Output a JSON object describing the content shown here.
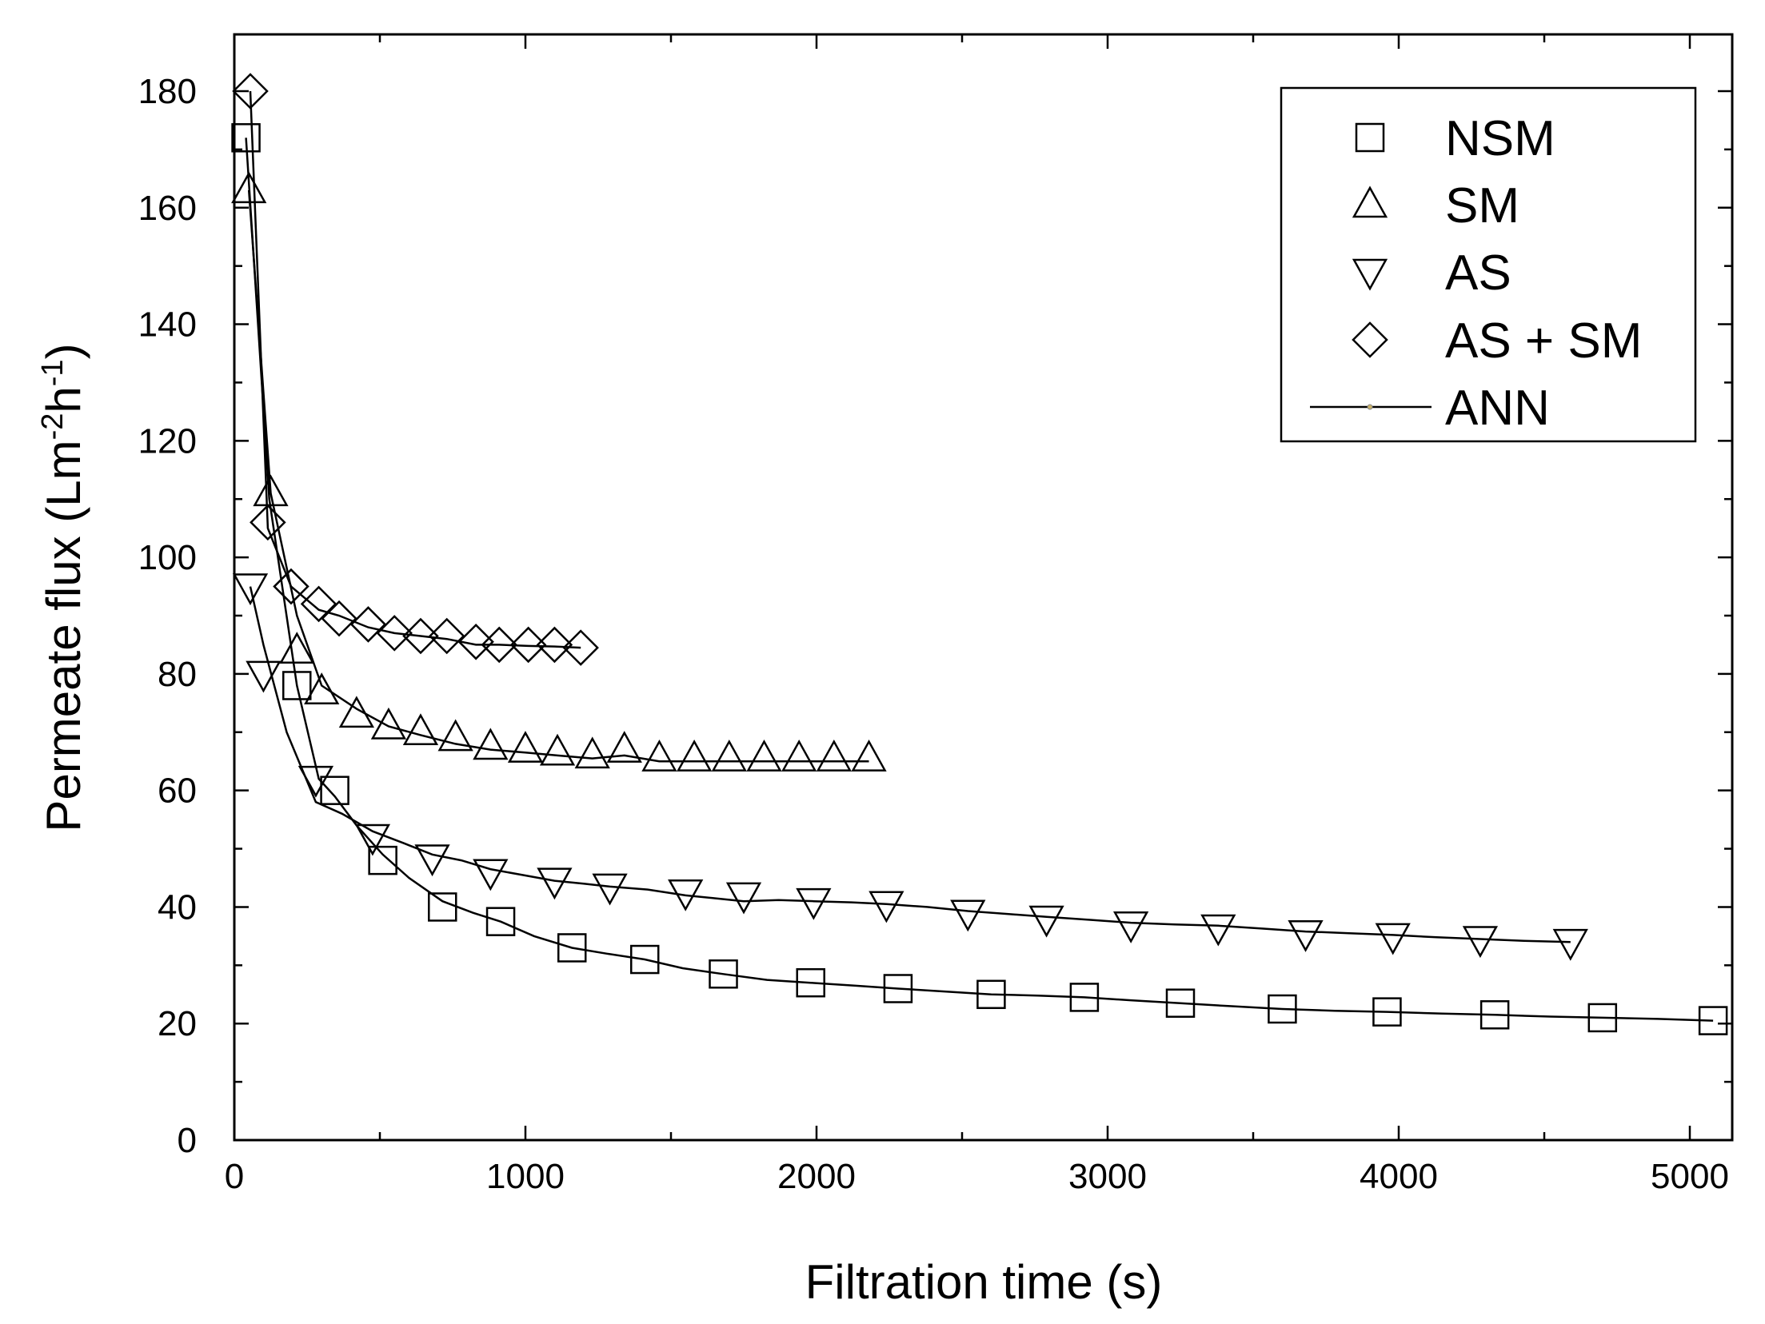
{
  "chart_data": {
    "type": "scatter",
    "title": "",
    "xlabel": "Filtration time (s)",
    "ylabel_main": "Permeate flux (Lm",
    "ylabel_sup1": "-2",
    "ylabel_mid": "h",
    "ylabel_sup2": "-1",
    "ylabel_end": ")",
    "xlim": [
      0,
      5200
    ],
    "ylim": [
      0,
      190
    ],
    "xticks": [
      0,
      1000,
      2000,
      3000,
      4000,
      5000
    ],
    "yticks": [
      0,
      20,
      40,
      60,
      80,
      100,
      120,
      140,
      160,
      180
    ],
    "xtick_labels": [
      "0",
      "1000",
      "2000",
      "3000",
      "4000",
      "5000"
    ],
    "ytick_labels": [
      "0",
      "20",
      "40",
      "60",
      "80",
      "100",
      "120",
      "140",
      "160",
      "180"
    ],
    "legend_position": "top-right",
    "series": [
      {
        "name": "NSM",
        "marker": "square",
        "x": [
          40,
          215,
          345,
          510,
          715,
          915,
          1160,
          1410,
          1680,
          1980,
          2280,
          2600,
          2920,
          3250,
          3600,
          3960,
          4330,
          4700,
          5080
        ],
        "y": [
          172,
          78,
          60,
          48,
          40,
          37.5,
          33,
          31,
          28.5,
          27,
          26,
          25,
          24.5,
          23.5,
          22.5,
          22,
          21.5,
          21,
          20.5
        ],
        "fit_x": [
          40,
          120,
          215,
          290,
          345,
          420,
          510,
          600,
          715,
          820,
          915,
          1030,
          1160,
          1280,
          1410,
          1540,
          1680,
          1830,
          1980,
          2130,
          2280,
          2440,
          2600,
          2760,
          2920,
          3080,
          3250,
          3420,
          3600,
          3780,
          3960,
          4150,
          4330,
          4520,
          4700,
          4890,
          5080
        ],
        "fit_y": [
          172,
          110,
          78,
          62,
          59,
          54,
          49,
          45,
          41,
          39,
          37.5,
          35,
          33,
          32,
          31,
          29.5,
          28.5,
          27.5,
          27,
          26.5,
          26,
          25.5,
          25,
          24.8,
          24.5,
          24,
          23.5,
          23,
          22.5,
          22.2,
          22,
          21.7,
          21.5,
          21.2,
          21,
          20.8,
          20.5
        ]
      },
      {
        "name": "SM",
        "marker": "triangle-up",
        "x": [
          50,
          125,
          215,
          300,
          420,
          530,
          640,
          760,
          880,
          1000,
          1110,
          1230,
          1340,
          1460,
          1580,
          1700,
          1820,
          1940,
          2060,
          2180
        ],
        "y": [
          163,
          111,
          84,
          77,
          73,
          71,
          70,
          69,
          67.5,
          67,
          66.5,
          66,
          67,
          65.5,
          65.5,
          65.5,
          65.5,
          65.5,
          65.5,
          65.5
        ],
        "fit_x": [
          50,
          125,
          215,
          300,
          420,
          530,
          640,
          760,
          880,
          1000,
          1110,
          1230,
          1340,
          1460,
          1580,
          1700,
          1820,
          1940,
          2060,
          2180
        ],
        "fit_y": [
          163,
          111,
          90,
          78,
          74,
          71,
          69.5,
          68,
          67,
          66.5,
          66,
          65.5,
          66,
          65,
          65,
          65,
          65,
          65,
          65,
          65
        ]
      },
      {
        "name": "AS",
        "marker": "triangle-down",
        "x": [
          55,
          100,
          280,
          475,
          680,
          880,
          1100,
          1290,
          1550,
          1750,
          1990,
          2240,
          2520,
          2790,
          3080,
          3380,
          3680,
          3980,
          4280,
          4590
        ],
        "y": [
          95,
          80,
          62,
          52,
          48.5,
          46,
          44.5,
          43.5,
          42.5,
          42,
          41,
          40.5,
          39,
          38,
          37,
          36.5,
          35.5,
          35,
          34.5,
          34
        ],
        "fit_x": [
          55,
          100,
          180,
          280,
          370,
          475,
          580,
          680,
          780,
          880,
          990,
          1100,
          1200,
          1290,
          1420,
          1550,
          1650,
          1750,
          1870,
          1990,
          2120,
          2240,
          2380,
          2520,
          2660,
          2790,
          2940,
          3080,
          3230,
          3380,
          3530,
          3680,
          3830,
          3980,
          4130,
          4280,
          4430,
          4590
        ],
        "fit_y": [
          95,
          85,
          70,
          58,
          56,
          53,
          51,
          49,
          48,
          46.5,
          45.5,
          44.5,
          44,
          43.5,
          43,
          42,
          41.5,
          41,
          41.2,
          41,
          40.8,
          40.5,
          40,
          39.3,
          38.8,
          38.3,
          37.8,
          37.3,
          37,
          36.8,
          36.3,
          35.8,
          35.5,
          35.2,
          34.8,
          34.5,
          34.2,
          34
        ]
      },
      {
        "name": "AS + SM",
        "marker": "diamond",
        "x": [
          55,
          115,
          195,
          290,
          360,
          460,
          550,
          640,
          730,
          830,
          910,
          1010,
          1100,
          1190
        ],
        "y": [
          180,
          106,
          95,
          92,
          89.5,
          88.5,
          87,
          86.5,
          86.5,
          85.5,
          85,
          85,
          85,
          84.5
        ],
        "fit_x": [
          55,
          115,
          195,
          290,
          360,
          460,
          550,
          640,
          730,
          830,
          910,
          1010,
          1100,
          1190
        ],
        "fit_y": [
          180,
          105,
          95,
          91,
          90,
          88,
          87,
          86.5,
          86,
          85,
          85,
          84.8,
          84.7,
          84.5
        ]
      }
    ],
    "legend": [
      {
        "label": "NSM",
        "marker": "square"
      },
      {
        "label": "SM",
        "marker": "triangle-up"
      },
      {
        "label": "AS",
        "marker": "triangle-down"
      },
      {
        "label": "AS + SM",
        "marker": "diamond"
      },
      {
        "label": "ANN",
        "marker": "line"
      }
    ]
  }
}
